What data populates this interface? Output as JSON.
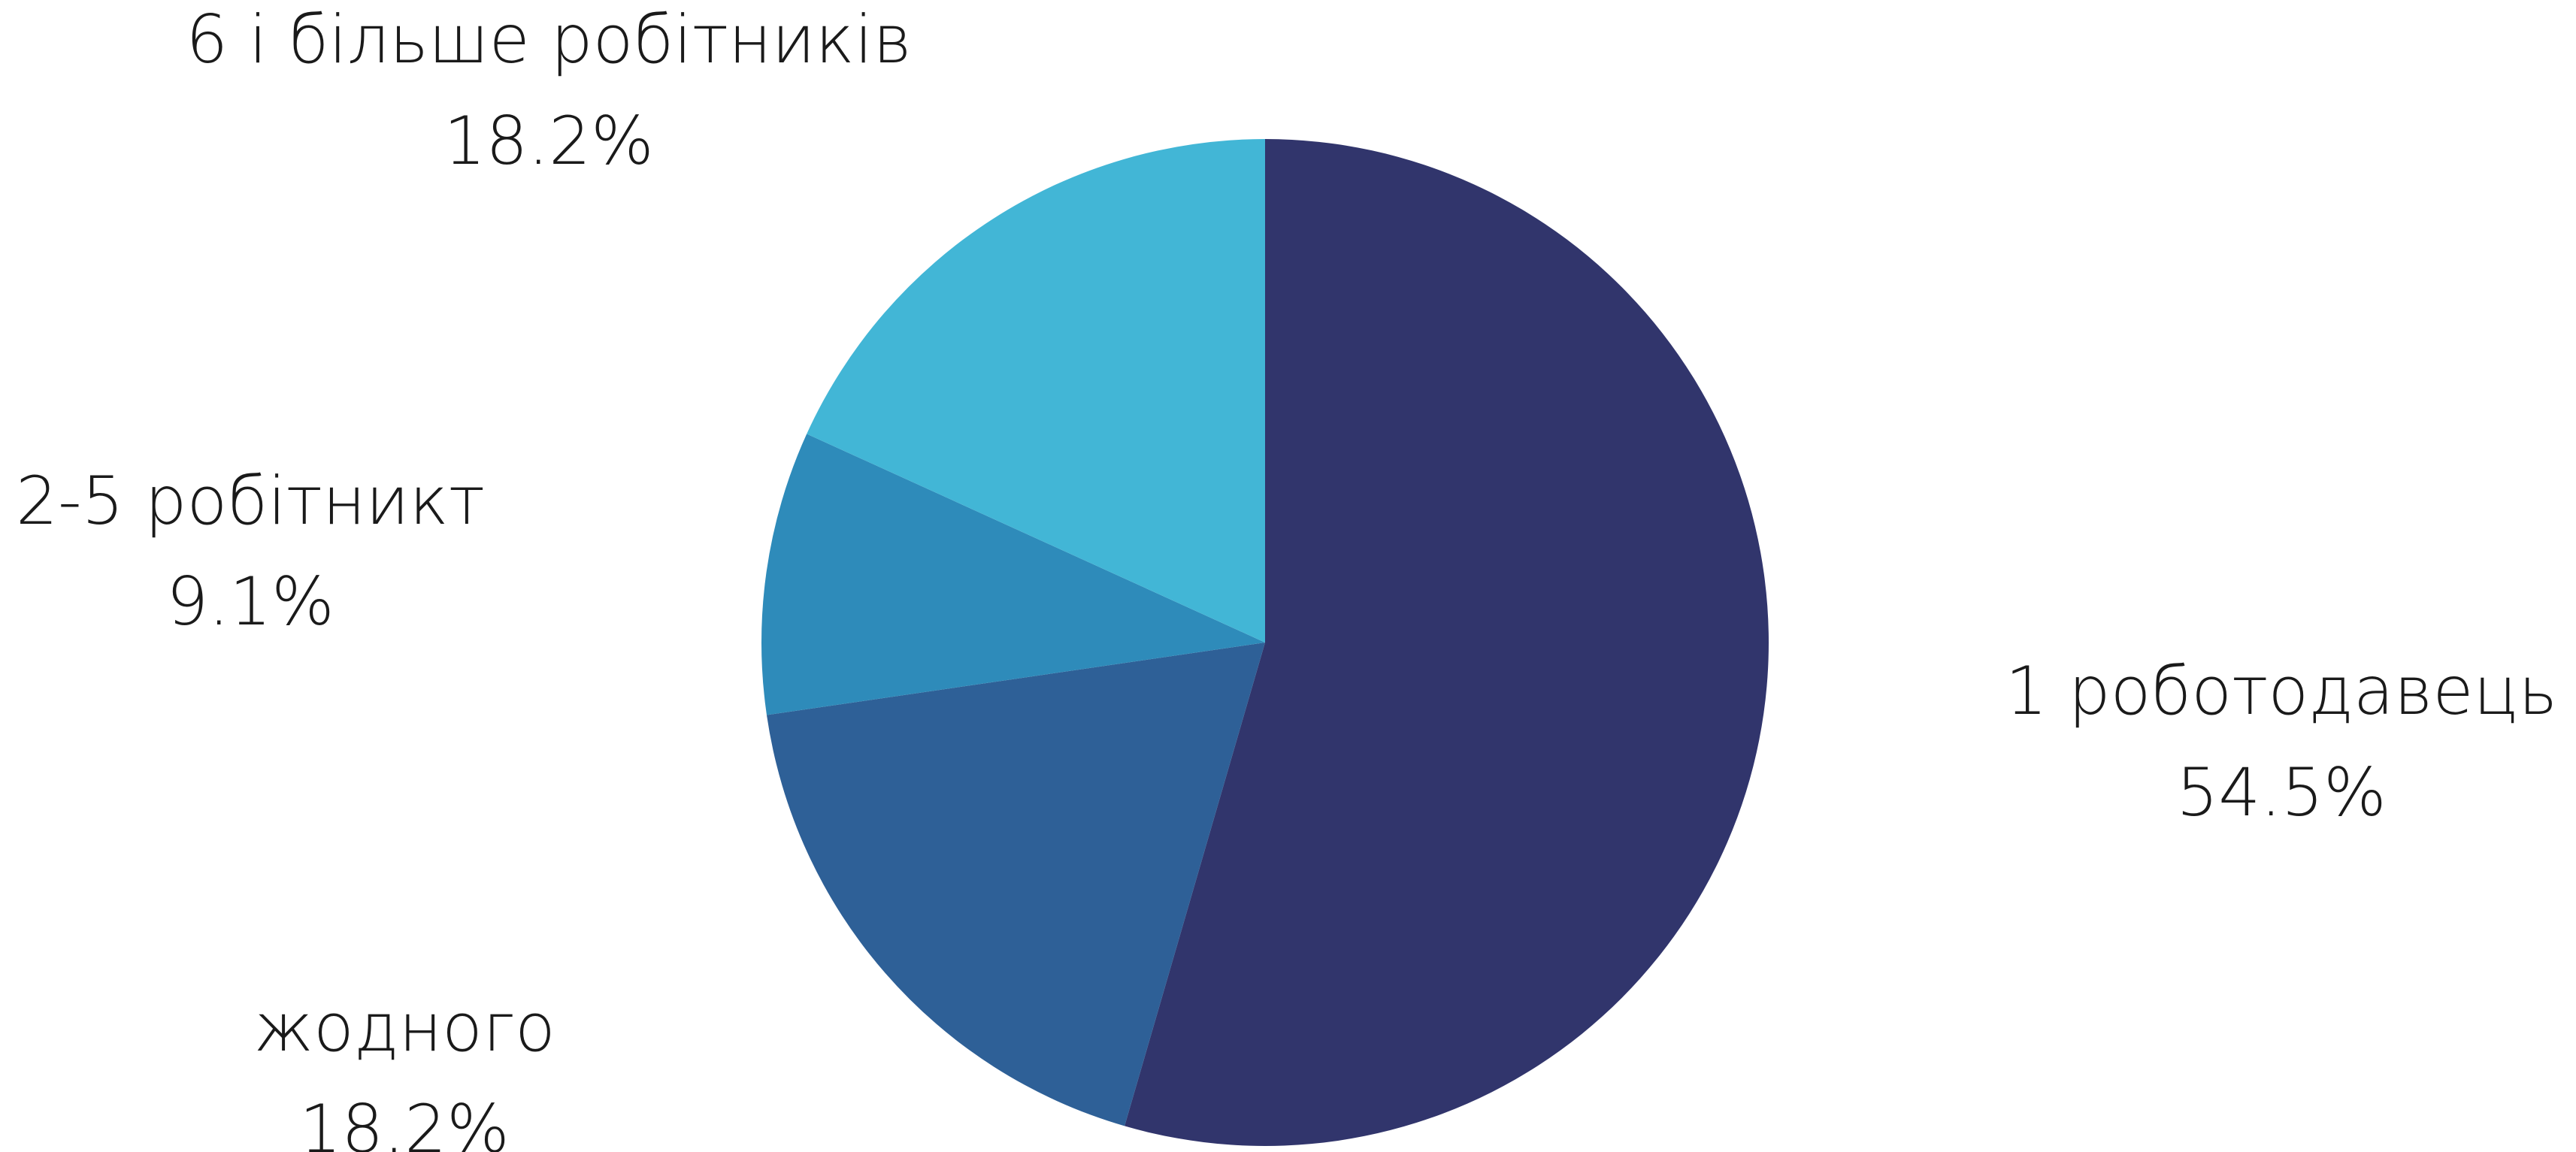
{
  "chart_data": {
    "type": "pie",
    "title": "",
    "start_angle_deg": 0,
    "direction": "clockwise",
    "slices": [
      {
        "label": "1 роботодавець",
        "value": 54.5,
        "value_label": "54.5%",
        "color": "#31356c"
      },
      {
        "label": "жодного",
        "value": 18.2,
        "value_label": "18.2%",
        "color": "#2e6097"
      },
      {
        "label": "2-5 робітникт",
        "value": 9.1,
        "value_label": "9.1%",
        "color": "#2e8bba"
      },
      {
        "label": "6 і більше робітників",
        "value": 18.2,
        "value_label": "18.2%",
        "color": "#42b6d6"
      }
    ],
    "legend": "none"
  }
}
